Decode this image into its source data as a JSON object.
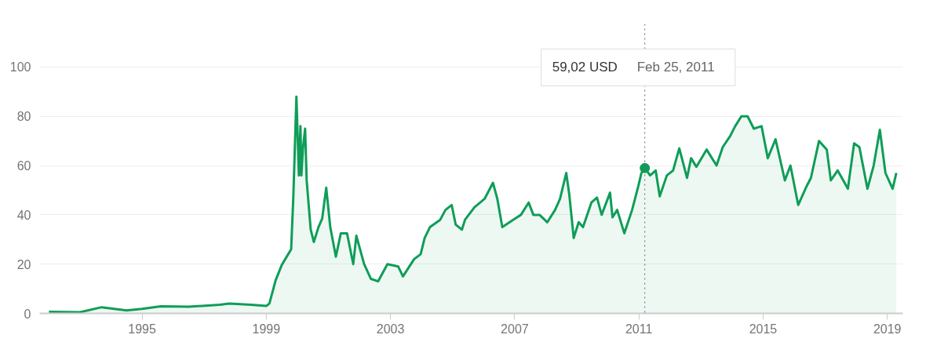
{
  "chart_data": {
    "type": "area",
    "x": [
      1992.0,
      1993.0,
      1993.7,
      1994.5,
      1995.0,
      1995.6,
      1996.5,
      1997.5,
      1997.8,
      1998.5,
      1999.0,
      1999.1,
      1999.3,
      1999.5,
      1999.8,
      1999.87,
      1999.97,
      2000.05,
      2000.1,
      2000.13,
      2000.18,
      2000.25,
      2000.3,
      2000.43,
      2000.53,
      2000.68,
      2000.8,
      2000.93,
      2001.06,
      2001.24,
      2001.4,
      2001.6,
      2001.8,
      2001.9,
      2002.15,
      2002.37,
      2002.6,
      2002.9,
      2003.25,
      2003.4,
      2003.76,
      2003.97,
      2004.1,
      2004.27,
      2004.6,
      2004.77,
      2004.97,
      2005.1,
      2005.3,
      2005.4,
      2005.7,
      2006.03,
      2006.3,
      2006.44,
      2006.6,
      2006.95,
      2007.2,
      2007.45,
      2007.6,
      2007.8,
      2008.05,
      2008.3,
      2008.46,
      2008.66,
      2008.76,
      2008.9,
      2009.06,
      2009.2,
      2009.47,
      2009.65,
      2009.8,
      2010.07,
      2010.15,
      2010.3,
      2010.53,
      2010.78,
      2010.98,
      2011.08,
      2011.19,
      2011.36,
      2011.54,
      2011.67,
      2011.9,
      2012.1,
      2012.3,
      2012.55,
      2012.68,
      2012.85,
      2013.18,
      2013.5,
      2013.7,
      2013.94,
      2014.1,
      2014.3,
      2014.5,
      2014.7,
      2014.95,
      2015.15,
      2015.4,
      2015.7,
      2015.88,
      2016.13,
      2016.4,
      2016.54,
      2016.8,
      2017.05,
      2017.18,
      2017.4,
      2017.73,
      2017.93,
      2018.1,
      2018.36,
      2018.56,
      2018.76,
      2018.94,
      2019.17,
      2019.29
    ],
    "series": [
      {
        "color": "#0f9d58",
        "values": [
          0.6,
          0.5,
          2.5,
          1.2,
          1.8,
          2.9,
          2.7,
          3.5,
          4,
          3.5,
          3.0,
          4,
          13.4,
          19.7,
          26,
          47,
          88,
          56,
          76,
          56,
          67,
          75,
          54,
          34,
          29,
          35,
          38.5,
          51,
          35,
          23,
          32.5,
          32.5,
          20,
          31.5,
          20,
          14,
          13,
          20,
          19,
          15,
          22,
          24,
          30.6,
          35,
          38,
          42,
          44,
          36,
          34,
          38,
          43,
          46.5,
          53,
          46.5,
          35,
          38,
          40,
          45,
          40,
          40,
          37,
          42,
          46.5,
          57,
          48,
          30.6,
          37,
          35,
          45,
          47,
          40,
          49,
          39,
          42,
          32.5,
          42,
          51.6,
          57,
          59,
          56,
          58,
          47.5,
          56,
          58,
          67,
          55,
          63,
          59.5,
          66.5,
          60,
          67.5,
          72,
          76,
          80,
          80,
          75,
          76,
          63,
          70.7,
          54,
          60,
          44,
          51.6,
          55,
          70,
          66.5,
          54,
          58,
          50.6,
          69,
          67.5,
          50.6,
          60,
          74.5,
          57,
          50.6,
          57
        ]
      }
    ],
    "xlim": [
      1991.7,
      2019.5
    ],
    "ylim": [
      0,
      117.5
    ],
    "xticks": [
      1995,
      1999,
      2003,
      2007,
      2011,
      2015,
      2019
    ],
    "yticks": [
      0,
      20,
      40,
      60,
      80,
      100
    ],
    "grid": "y",
    "ref_lines": [
      {
        "axis": "x",
        "value": 2011.19,
        "line_style": "dotted",
        "color": "#666666"
      }
    ],
    "annotations": [
      "59,02 USD",
      "Feb 25, 2011"
    ]
  }
}
